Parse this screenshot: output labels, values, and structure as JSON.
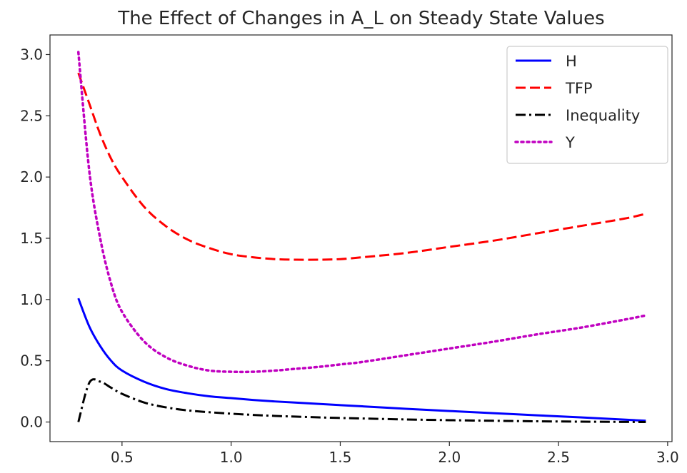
{
  "chart_data": {
    "type": "line",
    "title": "The Effect of Changes in A_L on Steady State Values",
    "xlabel": "",
    "ylabel": "",
    "xlim": [
      0.17,
      3.02
    ],
    "ylim": [
      -0.16,
      3.16
    ],
    "xticks": [
      0.5,
      1.0,
      1.5,
      2.0,
      2.5,
      3.0
    ],
    "xtick_labels": [
      "0.5",
      "1.0",
      "1.5",
      "2.0",
      "2.5",
      "3.0"
    ],
    "yticks": [
      0.0,
      0.5,
      1.0,
      1.5,
      2.0,
      2.5,
      3.0
    ],
    "ytick_labels": [
      "0.0",
      "0.5",
      "1.0",
      "1.5",
      "2.0",
      "2.5",
      "3.0"
    ],
    "grid": false,
    "legend_position": "top-right",
    "x": [
      0.3,
      0.35,
      0.4,
      0.45,
      0.5,
      0.6,
      0.7,
      0.8,
      0.9,
      1.0,
      1.1,
      1.2,
      1.3,
      1.4,
      1.5,
      1.6,
      1.8,
      2.0,
      2.2,
      2.4,
      2.6,
      2.8,
      2.9
    ],
    "series": [
      {
        "name": "H",
        "color": "#0000ff",
        "style": "solid",
        "values": [
          1.01,
          0.78,
          0.62,
          0.5,
          0.42,
          0.33,
          0.27,
          0.235,
          0.21,
          0.195,
          0.18,
          0.168,
          0.158,
          0.148,
          0.138,
          0.128,
          0.108,
          0.09,
          0.072,
          0.055,
          0.038,
          0.02,
          0.01
        ]
      },
      {
        "name": "TFP",
        "color": "#ff0000",
        "style": "dashed",
        "values": [
          2.85,
          2.6,
          2.35,
          2.15,
          2.0,
          1.76,
          1.6,
          1.49,
          1.42,
          1.37,
          1.345,
          1.33,
          1.325,
          1.325,
          1.33,
          1.345,
          1.38,
          1.43,
          1.48,
          1.54,
          1.6,
          1.66,
          1.7
        ]
      },
      {
        "name": "Inequality",
        "color": "#000000",
        "style": "dashdot",
        "values": [
          0.0,
          0.32,
          0.33,
          0.28,
          0.23,
          0.16,
          0.12,
          0.095,
          0.08,
          0.068,
          0.058,
          0.05,
          0.044,
          0.038,
          0.033,
          0.029,
          0.021,
          0.015,
          0.01,
          0.006,
          0.003,
          0.001,
          0.0
        ]
      },
      {
        "name": "Y",
        "color": "#c000c0",
        "style": "dotted",
        "values": [
          3.02,
          2.05,
          1.5,
          1.13,
          0.9,
          0.66,
          0.53,
          0.46,
          0.42,
          0.41,
          0.41,
          0.42,
          0.435,
          0.45,
          0.47,
          0.49,
          0.545,
          0.6,
          0.655,
          0.715,
          0.77,
          0.835,
          0.87
        ]
      }
    ]
  }
}
